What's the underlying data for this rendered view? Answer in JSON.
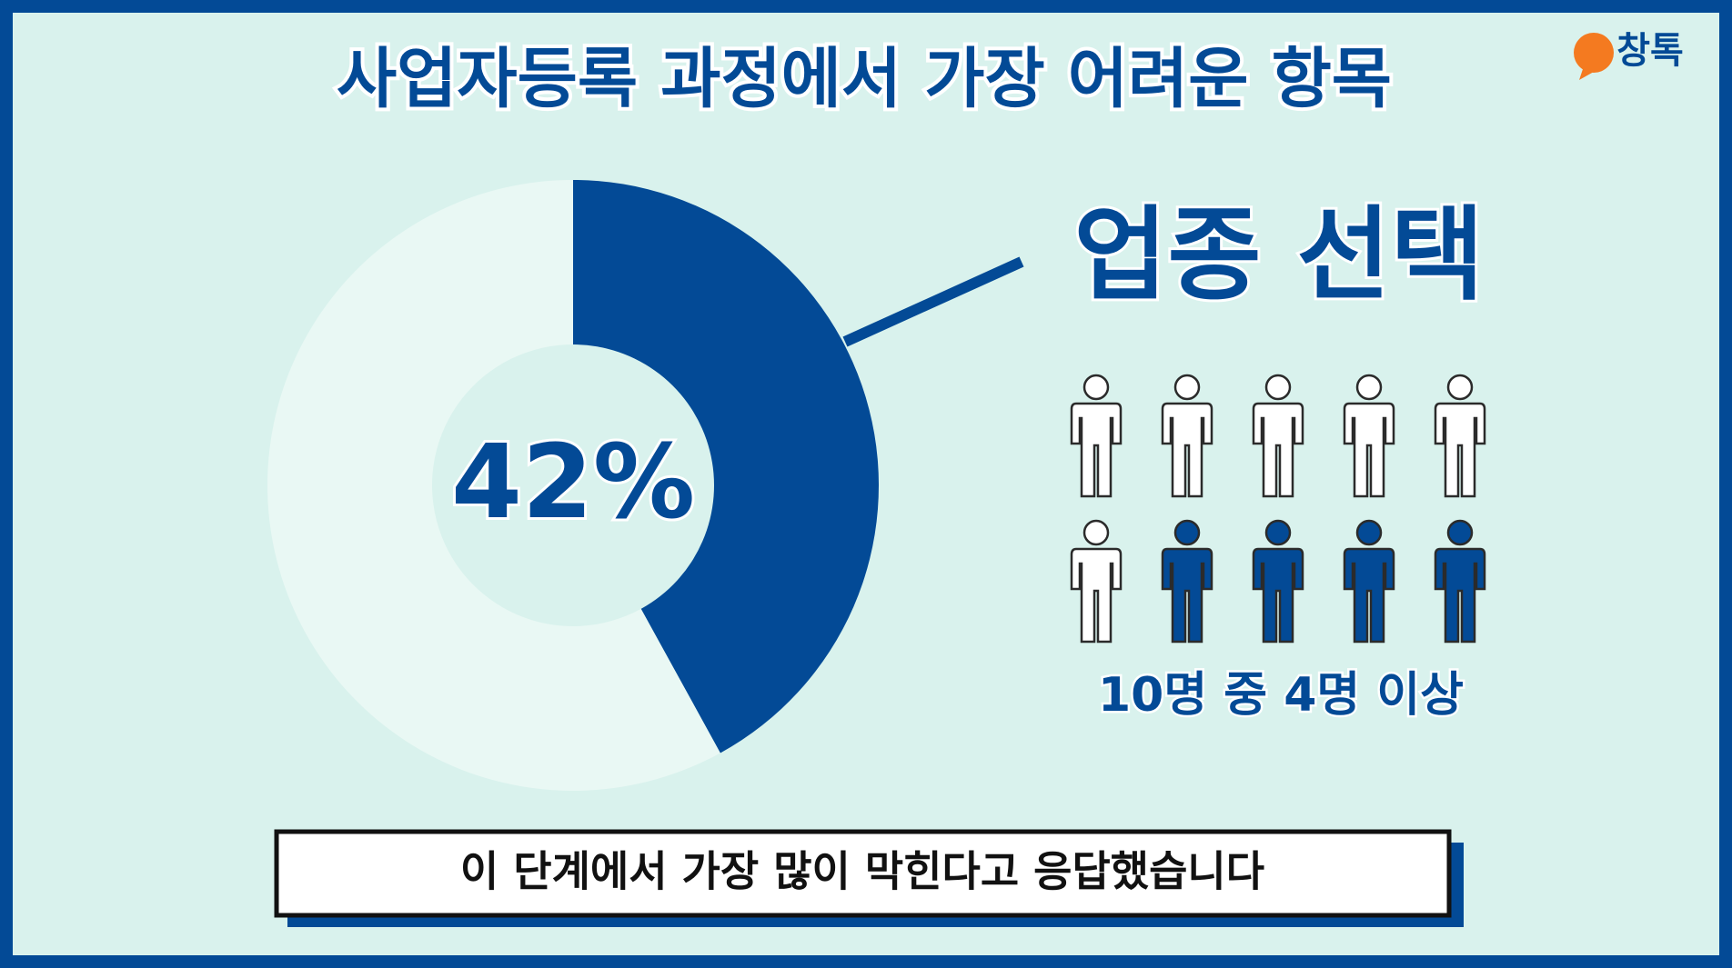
{
  "chart_data": {
    "type": "pie",
    "title": "사업자등록 과정에서 가장 어려운 항목",
    "brand": "창톡",
    "categories": [
      "업종 선택",
      null
    ],
    "values": [
      42,
      58
    ],
    "value_labels": [
      "42%",
      null
    ],
    "colors": [
      "#034a96",
      "#e9f8f4"
    ],
    "donut": true,
    "pictogram": {
      "total": 10,
      "filled": 4,
      "label": "10명 중 4명 이상",
      "color": "#034a96"
    },
    "caption": "이 단계에서 가장 많이 막힌다고 응답했습니다"
  }
}
